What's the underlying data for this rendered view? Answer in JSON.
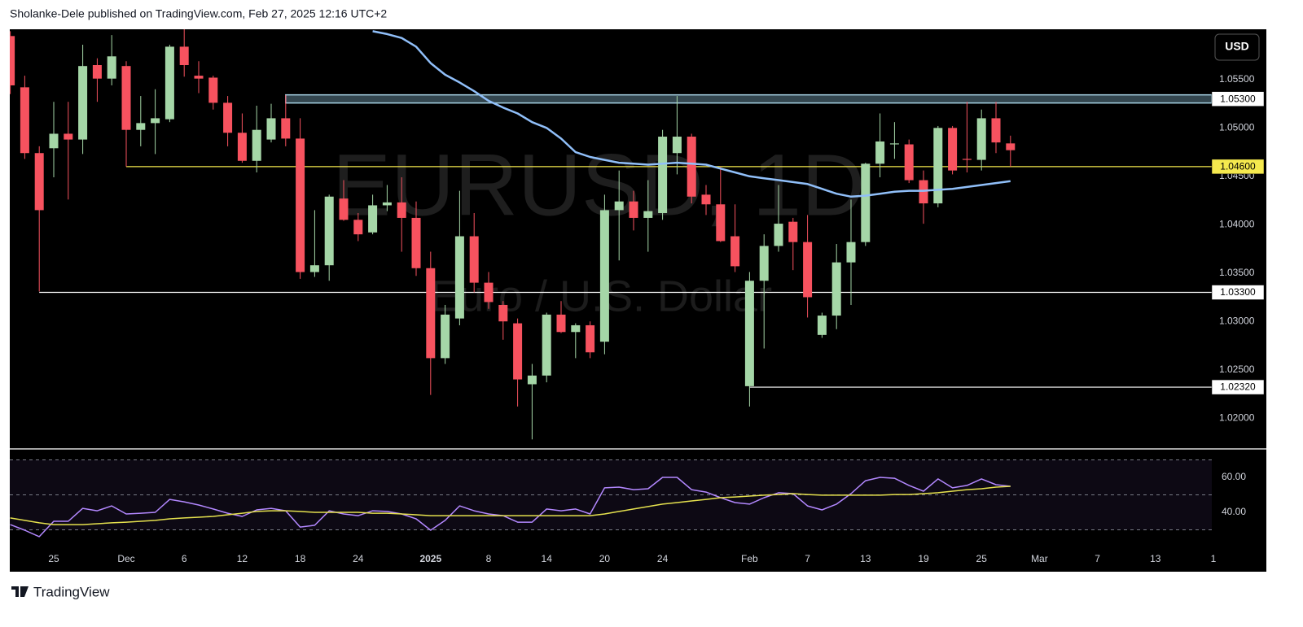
{
  "header": "Sholanke-Dele published on TradingView.com, Feb 27, 2025 12:16 UTC+2",
  "currency": "USD",
  "footer": "TradingView",
  "chart_data": [
    {
      "type": "candlestick",
      "title": "EURUSD, 1D",
      "subtitle": "Euro / U.S. Dollar",
      "up_color": "#a5d6a7",
      "down_color": "#f7525f",
      "categories": [
        null,
        null,
        null,
        "25",
        null,
        null,
        null,
        null,
        "Dec",
        null,
        null,
        null,
        "6",
        null,
        null,
        null,
        "12",
        null,
        null,
        null,
        "18",
        null,
        null,
        null,
        "24",
        null,
        null,
        null,
        null,
        "2025",
        null,
        null,
        null,
        "8",
        null,
        null,
        null,
        "14",
        null,
        null,
        null,
        "20",
        null,
        null,
        null,
        "24",
        null,
        null,
        null,
        null,
        null,
        "Feb",
        null,
        null,
        null,
        "7",
        null,
        null,
        null,
        "13",
        null,
        null,
        null,
        "19",
        null,
        null,
        null,
        "25",
        null,
        null,
        null,
        "Mar",
        null,
        null,
        null,
        "7",
        null,
        null,
        null,
        "13",
        null,
        null,
        null,
        "1"
      ],
      "open": [
        1.0595,
        1.0542,
        1.0474,
        1.0479,
        1.0494,
        1.0488,
        1.0565,
        1.0551,
        1.0564,
        1.0498,
        1.0505,
        1.0509,
        1.0584,
        1.0554,
        1.0552,
        1.0526,
        1.0495,
        1.0466,
        1.0488,
        1.051,
        1.0489,
        1.0351,
        1.0358,
        1.0427,
        1.0405,
        1.0392,
        1.042,
        1.0423,
        1.0407,
        1.0355,
        1.0262,
        1.0303,
        1.0388,
        1.034,
        1.0317,
        1.0298,
        1.0235,
        1.0244,
        1.0307,
        1.0289,
        1.0296,
        1.0279,
        1.0415,
        1.0424,
        1.0407,
        1.0412,
        1.0474,
        1.0491,
        1.0431,
        1.0421,
        1.0388,
        1.0233,
        1.0342,
        1.0378,
        1.0403,
        1.0382,
        1.0286,
        1.0306,
        1.0361,
        1.0382,
        1.0463,
        1.0483,
        1.0483,
        1.0446,
        1.0422,
        1.05,
        1.0468,
        1.0467,
        1.051,
        1.0484,
        null,
        null,
        null,
        null,
        null,
        null,
        null,
        null,
        null,
        null,
        null,
        null,
        null,
        null
      ],
      "high": [
        1.06,
        1.0554,
        1.0481,
        1.0527,
        1.0527,
        1.0586,
        1.0572,
        1.0596,
        1.0569,
        1.0533,
        1.054,
        1.0586,
        1.0602,
        1.0569,
        1.0554,
        1.0533,
        1.0515,
        1.0523,
        1.0525,
        1.0534,
        1.051,
        1.0415,
        1.0431,
        1.0446,
        1.0412,
        1.0431,
        1.0441,
        1.0449,
        1.0424,
        1.0372,
        1.0317,
        1.0435,
        1.0412,
        1.0351,
        1.0321,
        1.0303,
        1.0256,
        1.0309,
        1.0321,
        1.0298,
        1.03,
        1.0431,
        1.0456,
        1.0435,
        1.0446,
        1.0498,
        1.0533,
        1.0494,
        1.0441,
        1.046,
        1.0421,
        1.0351,
        1.039,
        1.0441,
        1.0407,
        1.041,
        1.0309,
        1.038,
        1.0426,
        1.0464,
        1.0515,
        1.0506,
        1.0488,
        1.0456,
        1.0502,
        1.0502,
        1.0527,
        1.0519,
        1.0527,
        1.0492,
        null,
        null,
        null,
        null,
        null,
        null,
        null,
        null,
        null,
        null,
        null,
        null,
        null,
        null
      ],
      "low": [
        1.0535,
        1.0468,
        1.0331,
        1.0449,
        1.0426,
        1.0473,
        1.0527,
        1.0544,
        1.046,
        1.0481,
        1.0473,
        1.0506,
        1.0553,
        1.0536,
        1.0519,
        1.0481,
        1.0464,
        1.0454,
        1.0485,
        1.0481,
        1.0344,
        1.0346,
        1.0342,
        1.0404,
        1.0383,
        1.039,
        1.0414,
        1.0372,
        1.0347,
        1.0224,
        1.0256,
        1.0296,
        1.033,
        1.0313,
        1.0281,
        1.0212,
        1.0178,
        1.0237,
        1.0288,
        1.0262,
        1.0262,
        1.0266,
        1.0363,
        1.0394,
        1.0372,
        1.0405,
        1.0452,
        1.0422,
        1.041,
        1.0382,
        1.0351,
        1.0212,
        1.0272,
        1.0372,
        1.0353,
        1.0304,
        1.0283,
        1.0292,
        1.0317,
        1.0378,
        1.0449,
        1.0468,
        1.0443,
        1.0401,
        1.0418,
        1.0452,
        1.0454,
        1.0456,
        1.0474,
        1.046,
        null,
        null,
        null,
        null,
        null,
        null,
        null,
        null,
        null,
        null,
        null,
        null,
        null,
        null
      ],
      "close": [
        1.0544,
        1.0474,
        1.0415,
        1.0494,
        1.0488,
        1.0564,
        1.0551,
        1.0574,
        1.0498,
        1.0505,
        1.051,
        1.0584,
        1.0565,
        1.0551,
        1.0526,
        1.0495,
        1.0466,
        1.0498,
        1.051,
        1.0489,
        1.0351,
        1.0358,
        1.0429,
        1.0405,
        1.039,
        1.042,
        1.0423,
        1.0407,
        1.0355,
        1.0262,
        1.0307,
        1.0388,
        1.034,
        1.032,
        1.03,
        1.024,
        1.0244,
        1.0307,
        1.0289,
        1.0296,
        1.0268,
        1.0415,
        1.0424,
        1.0407,
        1.0414,
        1.0491,
        1.0491,
        1.0429,
        1.0421,
        1.0383,
        1.0357,
        1.0342,
        1.0378,
        1.0401,
        1.0382,
        1.0325,
        1.0306,
        1.0361,
        1.0382,
        1.0463,
        1.0486,
        1.0484,
        1.0446,
        1.0422,
        1.05,
        1.0456,
        1.0467,
        1.051,
        1.0485,
        1.0477,
        null,
        null,
        null,
        null,
        null,
        null,
        null,
        null,
        null,
        null,
        null,
        null,
        null,
        null
      ],
      "series": [
        {
          "color": "#90bff9",
          "values": [
            null,
            null,
            null,
            null,
            null,
            null,
            null,
            null,
            null,
            null,
            null,
            null,
            null,
            null,
            null,
            null,
            null,
            null,
            null,
            null,
            null,
            null,
            null,
            null,
            null,
            1.06,
            1.0597,
            1.0593,
            1.0584,
            1.0567,
            1.0555,
            1.0547,
            1.0538,
            1.0528,
            1.0521,
            1.0515,
            1.0506,
            1.05,
            1.0489,
            1.0475,
            1.047,
            1.0467,
            1.0464,
            1.0463,
            1.0462,
            1.0463,
            1.0464,
            1.0463,
            1.0462,
            1.0458,
            1.0454,
            1.045,
            1.0448,
            1.0446,
            1.0444,
            1.0442,
            1.0437,
            1.0432,
            1.0429,
            1.043,
            1.0432,
            1.0434,
            1.0435,
            1.0435,
            1.0436,
            1.0437,
            1.0439,
            1.0441,
            1.0443,
            1.0445,
            null,
            null,
            null,
            null,
            null,
            null,
            null,
            null,
            null,
            null,
            null,
            null,
            null,
            null
          ]
        }
      ],
      "levels": [
        {
          "value": 1.053,
          "label": "1.05300",
          "color": "#a8d4e6",
          "style": "band"
        },
        {
          "value": 1.046,
          "label": "1.04600",
          "color": "#f5e94e"
        },
        {
          "value": 1.033,
          "label": "1.03300",
          "color": "#ffffff"
        },
        {
          "value": 1.0232,
          "label": "1.02320",
          "color": "#ffffff"
        }
      ],
      "ylim": [
        1.0169,
        1.0602
      ],
      "yticks": [
        {
          "value": 1.055,
          "label": "1.05500"
        },
        {
          "value": 1.05,
          "label": "1.05000"
        },
        {
          "value": 1.045,
          "label": "1.04500"
        },
        {
          "value": 1.04,
          "label": "1.04000"
        },
        {
          "value": 1.035,
          "label": "1.03500"
        },
        {
          "value": 1.03,
          "label": "1.03000"
        },
        {
          "value": 1.025,
          "label": "1.02500"
        },
        {
          "value": 1.02,
          "label": "1.02000"
        }
      ]
    },
    {
      "type": "line",
      "series": [
        {
          "color": "#b388ff",
          "values": [
            33.0,
            29.8,
            26.1,
            34.9,
            34.9,
            42.3,
            40.9,
            43.7,
            39.1,
            39.5,
            40.0,
            47.4,
            46.0,
            44.2,
            41.9,
            39.5,
            37.7,
            41.4,
            42.3,
            40.9,
            31.6,
            32.6,
            40.9,
            39.1,
            38.1,
            40.9,
            40.5,
            39.1,
            36.3,
            29.8,
            35.4,
            43.7,
            40.9,
            39.1,
            38.1,
            34.4,
            34.4,
            41.9,
            40.9,
            41.9,
            39.1,
            54.0,
            54.4,
            53.0,
            53.5,
            60.0,
            60.0,
            53.0,
            51.6,
            48.4,
            45.6,
            44.7,
            48.4,
            51.2,
            50.7,
            43.7,
            41.4,
            44.7,
            50.7,
            58.1,
            60.0,
            59.5,
            55.4,
            52.1,
            59.1,
            54.0,
            55.4,
            59.1,
            55.8,
            54.9,
            null,
            null,
            null,
            null,
            null,
            null,
            null,
            null,
            null,
            null,
            null,
            null,
            null,
            null
          ]
        },
        {
          "color": "#e5e14e",
          "values": [
            36.8,
            35.4,
            34.0,
            33.0,
            33.0,
            33.0,
            33.5,
            34.0,
            34.4,
            34.9,
            35.4,
            36.3,
            36.8,
            37.2,
            37.7,
            38.6,
            39.5,
            40.5,
            40.9,
            40.9,
            40.5,
            40.0,
            40.0,
            40.0,
            40.0,
            39.5,
            39.5,
            39.1,
            38.6,
            38.1,
            38.1,
            38.1,
            38.1,
            38.1,
            38.1,
            38.1,
            38.1,
            38.1,
            38.1,
            38.1,
            38.1,
            39.1,
            40.5,
            41.9,
            43.3,
            44.7,
            45.6,
            46.5,
            47.4,
            48.4,
            48.8,
            49.3,
            49.8,
            50.2,
            50.7,
            50.2,
            49.8,
            49.8,
            49.8,
            49.8,
            49.8,
            50.2,
            50.2,
            50.7,
            51.2,
            52.1,
            53.0,
            53.5,
            54.4,
            54.9,
            null,
            null,
            null,
            null,
            null,
            null,
            null,
            null,
            null,
            null,
            null,
            null,
            null,
            null
          ]
        }
      ],
      "band": [
        30,
        70
      ],
      "hlines": [
        70,
        50,
        30
      ],
      "ylim": [
        17.7,
        75.8
      ],
      "yticks": [
        {
          "value": 60,
          "label": "60.00"
        },
        {
          "value": 40,
          "label": "40.00"
        }
      ]
    }
  ]
}
